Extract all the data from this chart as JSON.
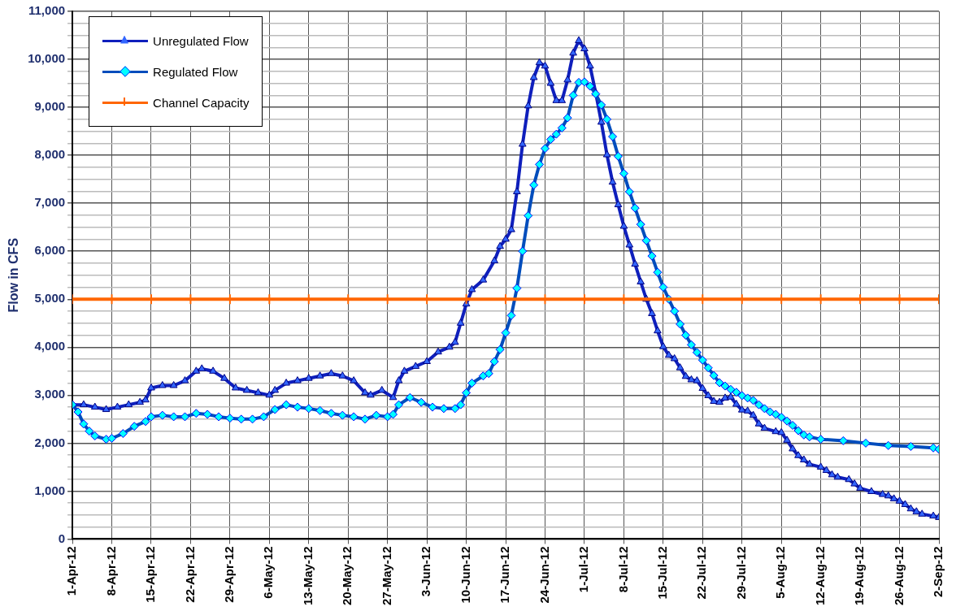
{
  "chart_data": {
    "type": "line",
    "ylabel": "Flow in CFS",
    "legend": "top left",
    "grid": true,
    "xlim": [
      "--04-01",
      "--09-02"
    ],
    "xticks": [
      {
        "value": "--04-01",
        "label": "1-Apr-12"
      },
      {
        "value": "--04-08",
        "label": "8-Apr-12"
      },
      {
        "value": "--04-15",
        "label": "15-Apr-12"
      },
      {
        "value": "--04-22",
        "label": "22-Apr-12"
      },
      {
        "value": "--04-29",
        "label": "29-Apr-12"
      },
      {
        "value": "--05-06",
        "label": "6-May-12"
      },
      {
        "value": "--05-13",
        "label": "13-May-12"
      },
      {
        "value": "--05-20",
        "label": "20-May-12"
      },
      {
        "value": "--05-27",
        "label": "27-May-12"
      },
      {
        "value": "--06-03",
        "label": "3-Jun-12"
      },
      {
        "value": "--06-10",
        "label": "10-Jun-12"
      },
      {
        "value": "--06-17",
        "label": "17-Jun-12"
      },
      {
        "value": "--06-24",
        "label": "24-Jun-12"
      },
      {
        "value": "--07-01",
        "label": "1-Jul-12"
      },
      {
        "value": "--07-08",
        "label": "8-Jul-12"
      },
      {
        "value": "--07-15",
        "label": "15-Jul-12"
      },
      {
        "value": "--07-22",
        "label": "22-Jul-12"
      },
      {
        "value": "--07-29",
        "label": "29-Jul-12"
      },
      {
        "value": "--08-05",
        "label": "5-Aug-12"
      },
      {
        "value": "--08-12",
        "label": "12-Aug-12"
      },
      {
        "value": "--08-19",
        "label": "19-Aug-12"
      },
      {
        "value": "--08-26",
        "label": "26-Aug-12"
      },
      {
        "value": "--09-02",
        "label": "2-Sep-12"
      }
    ],
    "ylim": [
      0,
      11000
    ],
    "yticks": [
      {
        "value": 0,
        "label": "0"
      },
      {
        "value": 250,
        "label": null
      },
      {
        "value": 500,
        "label": null
      },
      {
        "value": 750,
        "label": null
      },
      {
        "value": 1000,
        "label": "1,000"
      },
      {
        "value": 1250,
        "label": null
      },
      {
        "value": 1500,
        "label": null
      },
      {
        "value": 1750,
        "label": null
      },
      {
        "value": 2000,
        "label": "2,000"
      },
      {
        "value": 2250,
        "label": null
      },
      {
        "value": 2500,
        "label": null
      },
      {
        "value": 2750,
        "label": null
      },
      {
        "value": 3000,
        "label": "3,000"
      },
      {
        "value": 3250,
        "label": null
      },
      {
        "value": 3500,
        "label": null
      },
      {
        "value": 3750,
        "label": null
      },
      {
        "value": 4000,
        "label": "4,000"
      },
      {
        "value": 4250,
        "label": null
      },
      {
        "value": 4500,
        "label": null
      },
      {
        "value": 4750,
        "label": null
      },
      {
        "value": 5000,
        "label": "5,000"
      },
      {
        "value": 5250,
        "label": null
      },
      {
        "value": 5500,
        "label": null
      },
      {
        "value": 5750,
        "label": null
      },
      {
        "value": 6000,
        "label": "6,000"
      },
      {
        "value": 6250,
        "label": null
      },
      {
        "value": 6500,
        "label": null
      },
      {
        "value": 6750,
        "label": null
      },
      {
        "value": 7000,
        "label": "7,000"
      },
      {
        "value": 7250,
        "label": null
      },
      {
        "value": 7500,
        "label": null
      },
      {
        "value": 7750,
        "label": null
      },
      {
        "value": 8000,
        "label": "8,000"
      },
      {
        "value": 8250,
        "label": null
      },
      {
        "value": 8500,
        "label": null
      },
      {
        "value": 8750,
        "label": null
      },
      {
        "value": 9000,
        "label": "9,000"
      },
      {
        "value": 9250,
        "label": null
      },
      {
        "value": 9500,
        "label": null
      },
      {
        "value": 9750,
        "label": null
      },
      {
        "value": 10000,
        "label": "10,000"
      },
      {
        "value": 10250,
        "label": null
      },
      {
        "value": 10500,
        "label": null
      },
      {
        "value": 10750,
        "label": null
      },
      {
        "value": 11000,
        "label": "11,000"
      }
    ],
    "series": [
      {
        "name": "Unregulated Flow",
        "color": "#3366ff",
        "marker": "triangle",
        "x": [
          "--04-01",
          "--04-03",
          "--04-05",
          "--04-07",
          "--04-09",
          "--04-11",
          "--04-13",
          "--04-14",
          "--04-15",
          "--04-17",
          "--04-19",
          "--04-21",
          "--04-23",
          "--04-24",
          "--04-26",
          "--04-28",
          "--04-30",
          "--05-02",
          "--05-04",
          "--05-06",
          "--05-07",
          "--05-09",
          "--05-11",
          "--05-13",
          "--05-15",
          "--05-17",
          "--05-19",
          "--05-21",
          "--05-23",
          "--05-24",
          "--05-26",
          "--05-28",
          "--05-29",
          "--05-30",
          "--06-01",
          "--06-03",
          "--06-05",
          "--06-07",
          "--06-08",
          "--06-09",
          "--06-10",
          "--06-11",
          "--06-13",
          "--06-15",
          "--06-16",
          "--06-17",
          "--06-18",
          "--06-19",
          "--06-20",
          "--06-21",
          "--06-22",
          "--06-23",
          "--06-24",
          "--06-25",
          "--06-26",
          "--06-27",
          "--06-28",
          "--06-29",
          "--06-30",
          "--07-01",
          "--07-02",
          "--07-03",
          "--07-04",
          "--07-05",
          "--07-06",
          "--07-07",
          "--07-08",
          "--07-09",
          "--07-10",
          "--07-11",
          "--07-12",
          "--07-13",
          "--07-14",
          "--07-15",
          "--07-16",
          "--07-17",
          "--07-18",
          "--07-19",
          "--07-20",
          "--07-21",
          "--07-22",
          "--07-23",
          "--07-24",
          "--07-25",
          "--07-26",
          "--07-27",
          "--07-28",
          "--07-29",
          "--07-30",
          "--07-31",
          "--08-01",
          "--08-02",
          "--08-04",
          "--08-05",
          "--08-06",
          "--08-07",
          "--08-08",
          "--08-09",
          "--08-10",
          "--08-12",
          "--08-13",
          "--08-14",
          "--08-15",
          "--08-17",
          "--08-18",
          "--08-19",
          "--08-21",
          "--08-23",
          "--08-24",
          "--08-25",
          "--08-26",
          "--08-27",
          "--08-28",
          "--08-29",
          "--08-30",
          "--09-01",
          "--09-02"
        ],
        "values": [
          2800,
          2800,
          2750,
          2700,
          2750,
          2800,
          2850,
          2900,
          3150,
          3200,
          3200,
          3300,
          3500,
          3550,
          3500,
          3350,
          3150,
          3100,
          3050,
          3000,
          3100,
          3250,
          3300,
          3350,
          3400,
          3450,
          3400,
          3300,
          3050,
          3000,
          3100,
          2950,
          3300,
          3500,
          3600,
          3700,
          3900,
          4000,
          4100,
          4500,
          4900,
          5200,
          5400,
          5800,
          6100,
          6250,
          6450,
          7240,
          8230,
          9030,
          9620,
          9930,
          9860,
          9500,
          9140,
          9140,
          9570,
          10130,
          10390,
          10220,
          9860,
          9300,
          8690,
          8010,
          7440,
          6970,
          6520,
          6130,
          5730,
          5360,
          5000,
          4700,
          4340,
          4010,
          3830,
          3760,
          3570,
          3390,
          3320,
          3300,
          3140,
          2990,
          2870,
          2850,
          2940,
          2960,
          2810,
          2690,
          2670,
          2580,
          2400,
          2310,
          2240,
          2220,
          2060,
          1880,
          1740,
          1650,
          1560,
          1500,
          1430,
          1340,
          1290,
          1240,
          1150,
          1060,
          990,
          930,
          900,
          840,
          790,
          720,
          630,
          570,
          520,
          480,
          450
        ]
      },
      {
        "name": "Regulated Flow",
        "color": "#00ffff",
        "marker": "diamond",
        "x": [
          "--04-01",
          "--04-02",
          "--04-03",
          "--04-04",
          "--04-05",
          "--04-07",
          "--04-08",
          "--04-10",
          "--04-12",
          "--04-14",
          "--04-15",
          "--04-17",
          "--04-19",
          "--04-21",
          "--04-23",
          "--04-25",
          "--04-27",
          "--04-29",
          "--05-01",
          "--05-03",
          "--05-05",
          "--05-07",
          "--05-09",
          "--05-11",
          "--05-13",
          "--05-15",
          "--05-17",
          "--05-19",
          "--05-21",
          "--05-23",
          "--05-25",
          "--05-27",
          "--05-28",
          "--05-29",
          "--05-31",
          "--06-02",
          "--06-04",
          "--06-06",
          "--06-08",
          "--06-09",
          "--06-10",
          "--06-11",
          "--06-13",
          "--06-14",
          "--06-15",
          "--06-16",
          "--06-17",
          "--06-18",
          "--06-19",
          "--06-20",
          "--06-21",
          "--06-22",
          "--06-23",
          "--06-24",
          "--06-25",
          "--06-26",
          "--06-27",
          "--06-28",
          "--06-29",
          "--06-30",
          "--07-01",
          "--07-02",
          "--07-03",
          "--07-04",
          "--07-05",
          "--07-06",
          "--07-07",
          "--07-08",
          "--07-09",
          "--07-10",
          "--07-11",
          "--07-12",
          "--07-13",
          "--07-14",
          "--07-15",
          "--07-16",
          "--07-17",
          "--07-18",
          "--07-19",
          "--07-20",
          "--07-21",
          "--07-22",
          "--07-23",
          "--07-24",
          "--07-25",
          "--07-26",
          "--07-27",
          "--07-28",
          "--07-29",
          "--07-30",
          "--07-31",
          "--08-01",
          "--08-02",
          "--08-03",
          "--08-04",
          "--08-05",
          "--08-06",
          "--08-07",
          "--08-08",
          "--08-09",
          "--08-10",
          "--08-12",
          "--08-16",
          "--08-20",
          "--08-24",
          "--08-28",
          "--09-01",
          "--09-02"
        ],
        "values": [
          2800,
          2650,
          2400,
          2250,
          2150,
          2080,
          2100,
          2200,
          2350,
          2450,
          2550,
          2580,
          2550,
          2550,
          2620,
          2600,
          2550,
          2520,
          2500,
          2500,
          2550,
          2700,
          2800,
          2750,
          2720,
          2680,
          2620,
          2580,
          2550,
          2500,
          2580,
          2550,
          2600,
          2800,
          2950,
          2850,
          2750,
          2720,
          2720,
          2800,
          3050,
          3250,
          3400,
          3450,
          3700,
          3950,
          4300,
          4660,
          5230,
          6000,
          6740,
          7380,
          7810,
          8140,
          8330,
          8440,
          8570,
          8780,
          9250,
          9520,
          9530,
          9440,
          9280,
          9050,
          8750,
          8390,
          7980,
          7620,
          7240,
          6900,
          6560,
          6220,
          5900,
          5560,
          5250,
          5000,
          4750,
          4480,
          4250,
          4050,
          3890,
          3730,
          3570,
          3410,
          3260,
          3190,
          3120,
          3060,
          2990,
          2940,
          2890,
          2800,
          2720,
          2650,
          2600,
          2540,
          2460,
          2370,
          2260,
          2170,
          2130,
          2080,
          2050,
          2000,
          1950,
          1930,
          1900,
          1870
        ]
      },
      {
        "name": "Channel Capacity",
        "color": "#ff6600",
        "marker": "cross",
        "x": [
          "--04-01",
          "--04-08",
          "--04-15",
          "--04-22",
          "--04-29",
          "--05-06",
          "--05-13",
          "--05-20",
          "--05-27",
          "--06-03",
          "--06-10",
          "--06-17",
          "--06-24",
          "--07-01",
          "--07-08",
          "--07-15",
          "--07-22",
          "--07-29",
          "--08-05",
          "--08-12",
          "--08-19",
          "--08-26",
          "--09-02"
        ],
        "values": [
          5000,
          5000,
          5000,
          5000,
          5000,
          5000,
          5000,
          5000,
          5000,
          5000,
          5000,
          5000,
          5000,
          5000,
          5000,
          5000,
          5000,
          5000,
          5000,
          5000,
          5000,
          5000,
          5000
        ]
      }
    ]
  }
}
